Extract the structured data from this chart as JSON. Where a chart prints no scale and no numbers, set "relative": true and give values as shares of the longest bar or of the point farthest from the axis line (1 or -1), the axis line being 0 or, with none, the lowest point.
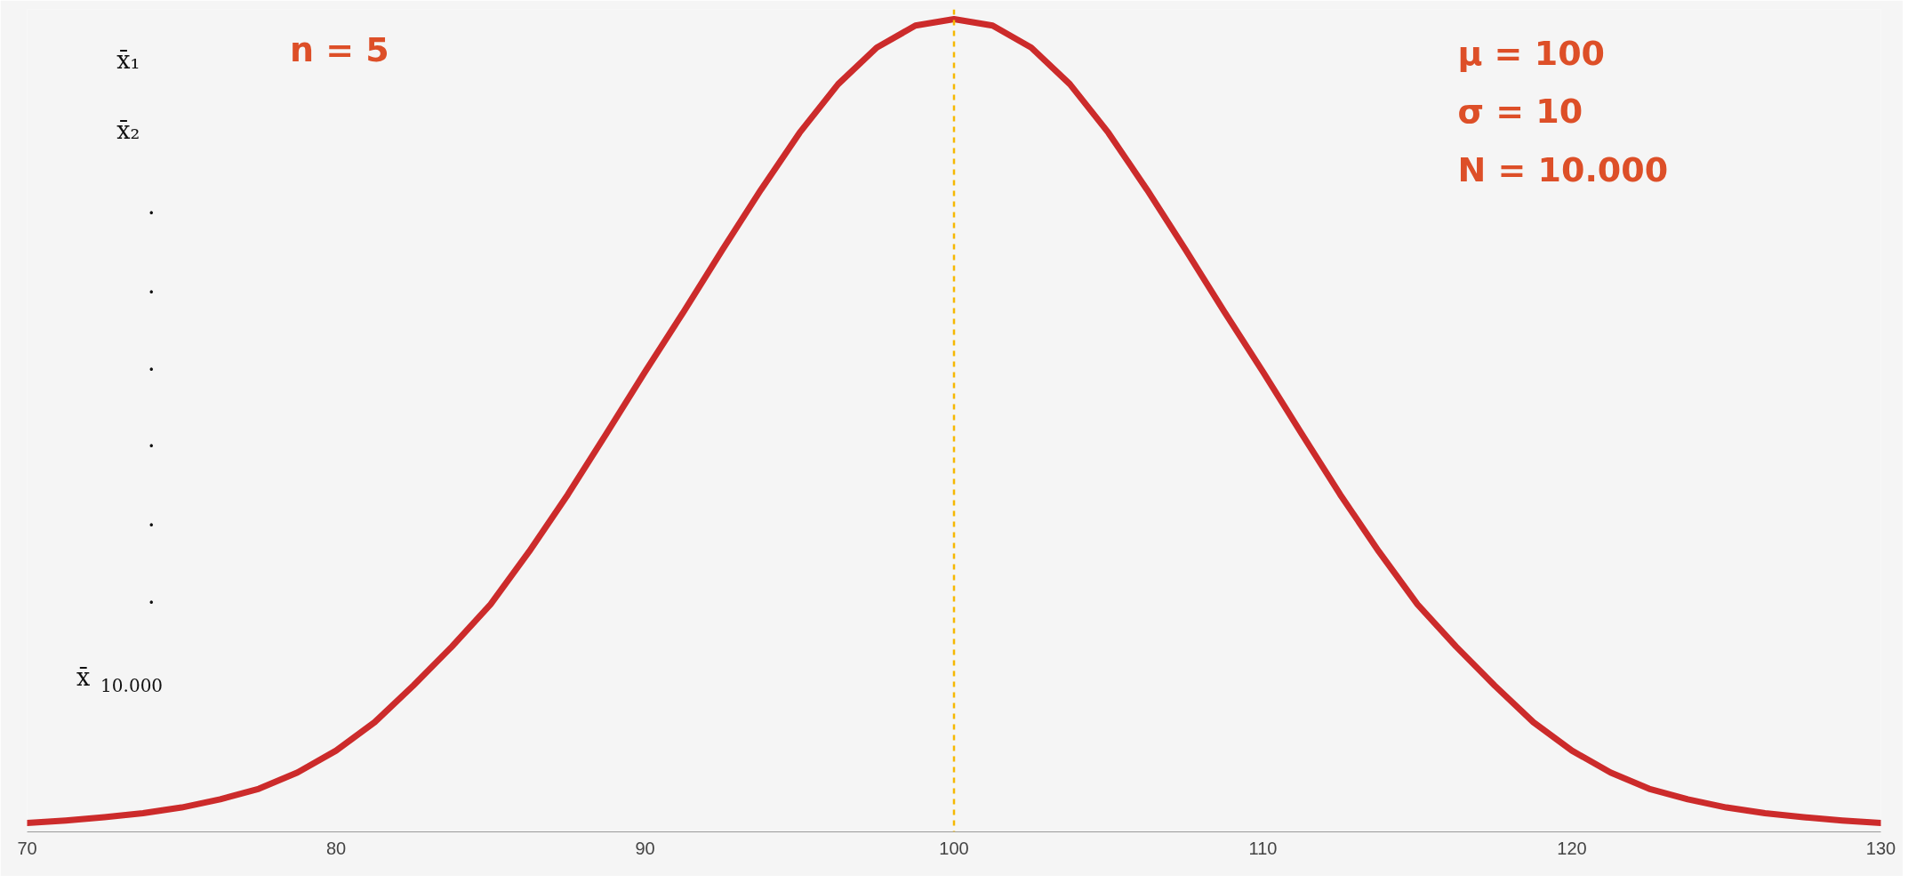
{
  "chart_data": {
    "type": "line",
    "relative": true,
    "x": [
      70,
      71.25,
      72.5,
      73.75,
      75,
      76.25,
      77.5,
      78.75,
      80,
      81.25,
      82.5,
      83.75,
      85,
      86.25,
      87.5,
      88.75,
      90,
      91.25,
      92.5,
      93.75,
      95,
      96.25,
      97.5,
      98.75,
      100,
      101.25,
      102.5,
      103.75,
      105,
      106.25,
      107.5,
      108.75,
      110,
      111.25,
      112.5,
      113.75,
      115,
      116.25,
      117.5,
      118.75,
      120,
      121.25,
      122.5,
      123.75,
      125,
      126.25,
      127.5,
      128.75,
      130
    ],
    "series": [
      {
        "color": "#cc2b2b",
        "values": [
          0.011,
          0.014,
          0.018,
          0.023,
          0.03,
          0.04,
          0.053,
          0.073,
          0.1,
          0.135,
          0.18,
          0.228,
          0.28,
          0.345,
          0.415,
          0.49,
          0.566,
          0.64,
          0.716,
          0.79,
          0.86,
          0.92,
          0.965,
          0.992,
          1,
          0.992,
          0.965,
          0.92,
          0.86,
          0.79,
          0.716,
          0.64,
          0.566,
          0.49,
          0.415,
          0.345,
          0.28,
          0.228,
          0.18,
          0.135,
          0.1,
          0.073,
          0.053,
          0.04,
          0.03,
          0.023,
          0.018,
          0.014,
          0.011
        ]
      }
    ],
    "xlim": [
      70,
      130
    ],
    "xticks": [
      70,
      80,
      90,
      100,
      110,
      120,
      130
    ],
    "ref_lines": [
      {
        "axis": "x",
        "value": 100,
        "color": "#f5b800",
        "line_style": "dashed"
      }
    ],
    "annotations": [
      "x̄₁",
      "x̄₂",
      "·",
      "·",
      "·",
      "·",
      "·",
      "·",
      "x̄$_{10.000}$",
      "n = 5",
      "μ   = 100",
      "σ   = 10",
      "N = 10.000"
    ],
    "grid": false,
    "marker": "none",
    "line_style": "solid"
  }
}
